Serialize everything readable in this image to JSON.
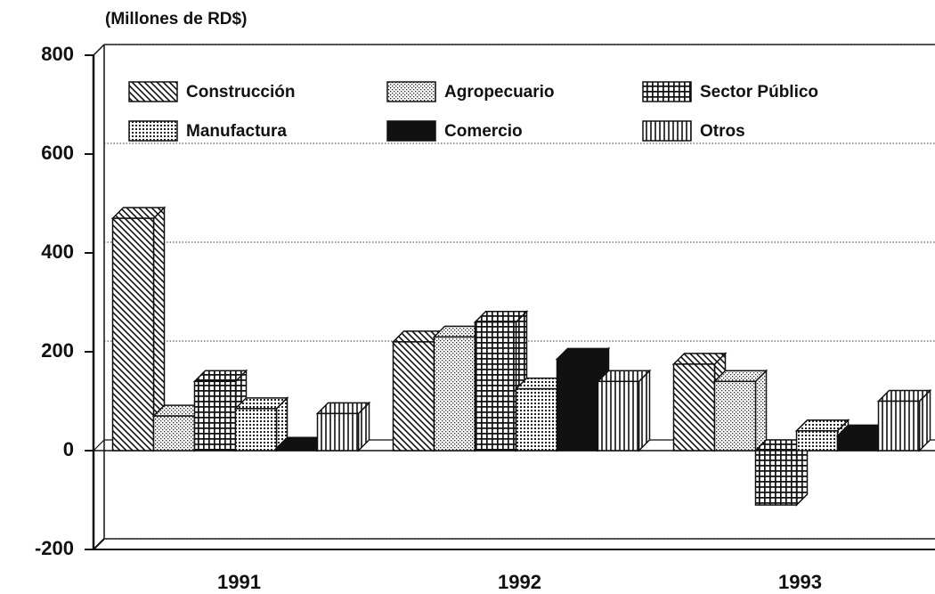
{
  "chart_data": {
    "type": "bar3d",
    "axis_label": "(Millones de RD$)",
    "categories": [
      "1991",
      "1992",
      "1993"
    ],
    "series": [
      {
        "name": "Construcción",
        "color": "#111111",
        "pattern": "diagonal",
        "values": [
          470,
          220,
          175
        ]
      },
      {
        "name": "Agropecuario",
        "color": "#111111",
        "pattern": "dots",
        "values": [
          70,
          230,
          140
        ]
      },
      {
        "name": "Sector Público",
        "color": "#111111",
        "pattern": "grid",
        "values": [
          140,
          260,
          -110
        ]
      },
      {
        "name": "Manufactura",
        "color": "#111111",
        "pattern": "fine-grid",
        "values": [
          85,
          125,
          40
        ]
      },
      {
        "name": "Comercio",
        "color": "#111111",
        "pattern": "solid",
        "values": [
          5,
          185,
          30
        ]
      },
      {
        "name": "Otros",
        "color": "#111111",
        "pattern": "vertical",
        "values": [
          75,
          140,
          100
        ]
      }
    ],
    "ylim": [
      -200,
      800
    ],
    "yticks": [
      -200,
      0,
      200,
      400,
      600,
      800
    ],
    "grid": true
  }
}
